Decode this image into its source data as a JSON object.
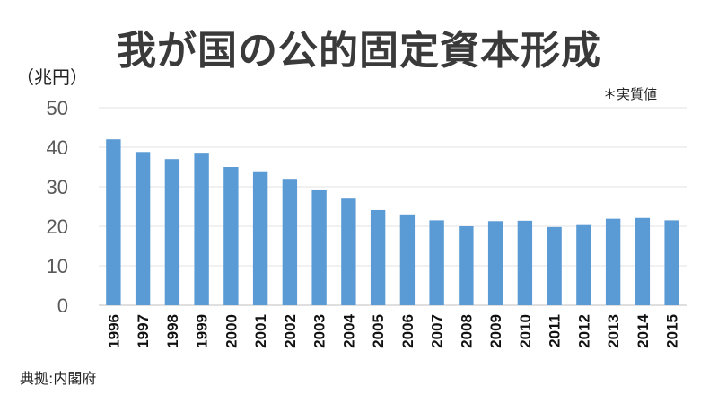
{
  "chart_data": {
    "type": "bar",
    "title": "我が国の公的固定資本形成",
    "ylabel": "（兆円）",
    "note": "＊実質値",
    "source": "典拠:内閣府",
    "categories": [
      "1996",
      "1997",
      "1998",
      "1999",
      "2000",
      "2001",
      "2002",
      "2003",
      "2004",
      "2005",
      "2006",
      "2007",
      "2008",
      "2009",
      "2010",
      "2011",
      "2012",
      "2013",
      "2014",
      "2015"
    ],
    "values": [
      42.0,
      38.8,
      37.0,
      38.6,
      35.0,
      33.7,
      32.0,
      29.1,
      27.0,
      24.1,
      23.0,
      21.5,
      20.0,
      21.3,
      21.4,
      19.8,
      20.3,
      21.9,
      22.1,
      21.5
    ],
    "yticks": [
      0,
      10,
      20,
      30,
      40,
      50
    ],
    "ylim": [
      0,
      50
    ],
    "grid": true,
    "legend": "none",
    "bar_color": "#5b9bd5"
  }
}
